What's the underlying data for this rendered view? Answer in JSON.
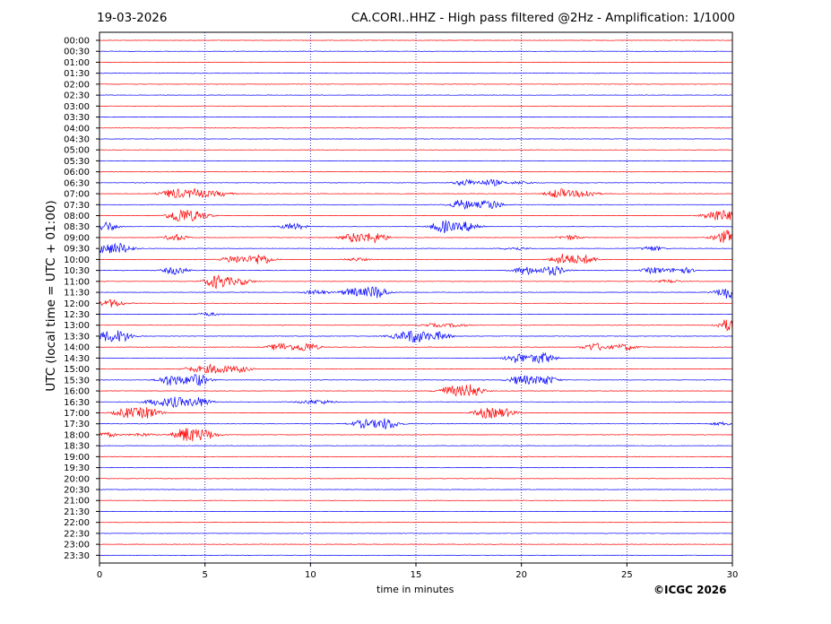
{
  "header": {
    "date": "19-03-2026",
    "title": "CA.CORI..HHZ - High pass filtered @2Hz - Amplification: 1/1000"
  },
  "footer": {
    "copyright": "©ICGC 2026"
  },
  "chart_data": {
    "type": "line",
    "title": "CA.CORI..HHZ - High pass filtered @2Hz - Amplification: 1/1000",
    "xlabel": "time in minutes",
    "ylabel": "UTC (local time = UTC + 01:00)",
    "xlim": [
      0,
      30
    ],
    "x_ticks": [
      0,
      5,
      10,
      15,
      20,
      25,
      30
    ],
    "grid": "vertical dotted lines at 5-minute intervals",
    "trace_colors": [
      "#ff0000",
      "#0000ff"
    ],
    "rows": [
      "00:00",
      "00:30",
      "01:00",
      "01:30",
      "02:00",
      "02:30",
      "03:00",
      "03:30",
      "04:00",
      "04:30",
      "05:00",
      "05:30",
      "06:00",
      "06:30",
      "07:00",
      "07:30",
      "08:00",
      "08:30",
      "09:00",
      "09:30",
      "10:00",
      "10:30",
      "11:00",
      "11:30",
      "12:00",
      "12:30",
      "13:00",
      "13:30",
      "14:00",
      "14:30",
      "15:00",
      "15:30",
      "16:00",
      "16:30",
      "17:00",
      "17:30",
      "18:00",
      "18:30",
      "19:00",
      "19:30",
      "20:00",
      "20:30",
      "21:00",
      "21:30",
      "22:00",
      "22:30",
      "23:00",
      "23:30"
    ],
    "bursts": [
      {
        "row": "06:30",
        "events": [
          [
            17.4,
            0.4
          ],
          [
            18.6,
            0.4
          ],
          [
            20.0,
            0.2
          ]
        ]
      },
      {
        "row": "07:00",
        "events": [
          [
            3.5,
            0.6
          ],
          [
            4.6,
            0.6
          ],
          [
            5.7,
            0.3
          ],
          [
            21.8,
            0.6
          ],
          [
            23.0,
            0.5
          ]
        ]
      },
      {
        "row": "07:30",
        "events": [
          [
            17.2,
            0.6
          ],
          [
            18.5,
            0.6
          ]
        ]
      },
      {
        "row": "08:00",
        "events": [
          [
            3.8,
            0.9
          ],
          [
            4.7,
            0.5
          ],
          [
            29.2,
            0.7
          ],
          [
            30.0,
            0.4
          ]
        ]
      },
      {
        "row": "08:30",
        "events": [
          [
            0.3,
            0.6
          ],
          [
            9.2,
            0.4
          ],
          [
            16.3,
            0.8
          ],
          [
            17.5,
            0.6
          ]
        ]
      },
      {
        "row": "09:00",
        "events": [
          [
            3.6,
            0.4
          ],
          [
            12.1,
            0.6
          ],
          [
            13.1,
            0.6
          ],
          [
            22.3,
            0.3
          ],
          [
            29.6,
            0.5
          ],
          [
            30.0,
            0.5
          ]
        ]
      },
      {
        "row": "09:30",
        "events": [
          [
            0.2,
            0.5
          ],
          [
            1.0,
            0.6
          ],
          [
            19.7,
            0.2
          ],
          [
            26.2,
            0.3
          ]
        ]
      },
      {
        "row": "10:00",
        "events": [
          [
            6.4,
            0.5
          ],
          [
            7.6,
            0.7
          ],
          [
            12.2,
            0.2
          ],
          [
            22.0,
            0.7
          ],
          [
            23.0,
            0.5
          ]
        ]
      },
      {
        "row": "10:30",
        "events": [
          [
            3.6,
            0.5
          ],
          [
            20.2,
            0.5
          ],
          [
            21.5,
            0.6
          ],
          [
            26.3,
            0.4
          ],
          [
            27.6,
            0.4
          ]
        ]
      },
      {
        "row": "11:00",
        "events": [
          [
            5.6,
            0.9
          ],
          [
            6.7,
            0.4
          ],
          [
            27.0,
            0.2
          ]
        ]
      },
      {
        "row": "11:30",
        "events": [
          [
            10.3,
            0.3
          ],
          [
            12.0,
            0.5
          ],
          [
            13.1,
            0.8
          ],
          [
            29.8,
            0.8
          ]
        ]
      },
      {
        "row": "12:00",
        "events": [
          [
            0.6,
            0.5
          ]
        ]
      },
      {
        "row": "12:30",
        "events": [
          [
            5.2,
            0.2
          ]
        ]
      },
      {
        "row": "13:00",
        "events": [
          [
            15.8,
            0.2
          ],
          [
            16.9,
            0.2
          ],
          [
            29.9,
            0.8
          ]
        ]
      },
      {
        "row": "13:30",
        "events": [
          [
            0.2,
            0.5
          ],
          [
            1.0,
            0.7
          ],
          [
            14.2,
            0.3
          ],
          [
            15.0,
            0.8
          ],
          [
            16.1,
            0.5
          ]
        ]
      },
      {
        "row": "14:00",
        "events": [
          [
            8.6,
            0.5
          ],
          [
            9.8,
            0.6
          ],
          [
            23.5,
            0.5
          ],
          [
            24.9,
            0.4
          ]
        ]
      },
      {
        "row": "14:30",
        "events": [
          [
            19.8,
            0.6
          ],
          [
            21.0,
            0.7
          ]
        ]
      },
      {
        "row": "15:00",
        "events": [
          [
            4.5,
            0.3
          ],
          [
            5.5,
            0.6
          ],
          [
            6.6,
            0.4
          ]
        ]
      },
      {
        "row": "15:30",
        "events": [
          [
            3.4,
            0.7
          ],
          [
            4.6,
            0.8
          ],
          [
            20.0,
            0.6
          ],
          [
            21.1,
            0.6
          ]
        ]
      },
      {
        "row": "16:00",
        "events": [
          [
            16.6,
            0.6
          ],
          [
            17.6,
            0.8
          ]
        ]
      },
      {
        "row": "16:30",
        "events": [
          [
            2.7,
            0.4
          ],
          [
            3.6,
            0.6
          ],
          [
            4.7,
            0.6
          ],
          [
            9.9,
            0.2
          ],
          [
            10.6,
            0.2
          ]
        ]
      },
      {
        "row": "17:00",
        "events": [
          [
            1.3,
            0.6
          ],
          [
            2.3,
            0.7
          ],
          [
            18.3,
            0.6
          ],
          [
            19.2,
            0.5
          ]
        ]
      },
      {
        "row": "17:30",
        "events": [
          [
            12.5,
            0.5
          ],
          [
            13.6,
            0.7
          ],
          [
            29.5,
            0.2
          ]
        ]
      },
      {
        "row": "18:00",
        "events": [
          [
            0.3,
            0.3
          ],
          [
            2.0,
            0.2
          ],
          [
            4.1,
            0.9
          ],
          [
            5.0,
            0.6
          ]
        ]
      }
    ]
  }
}
